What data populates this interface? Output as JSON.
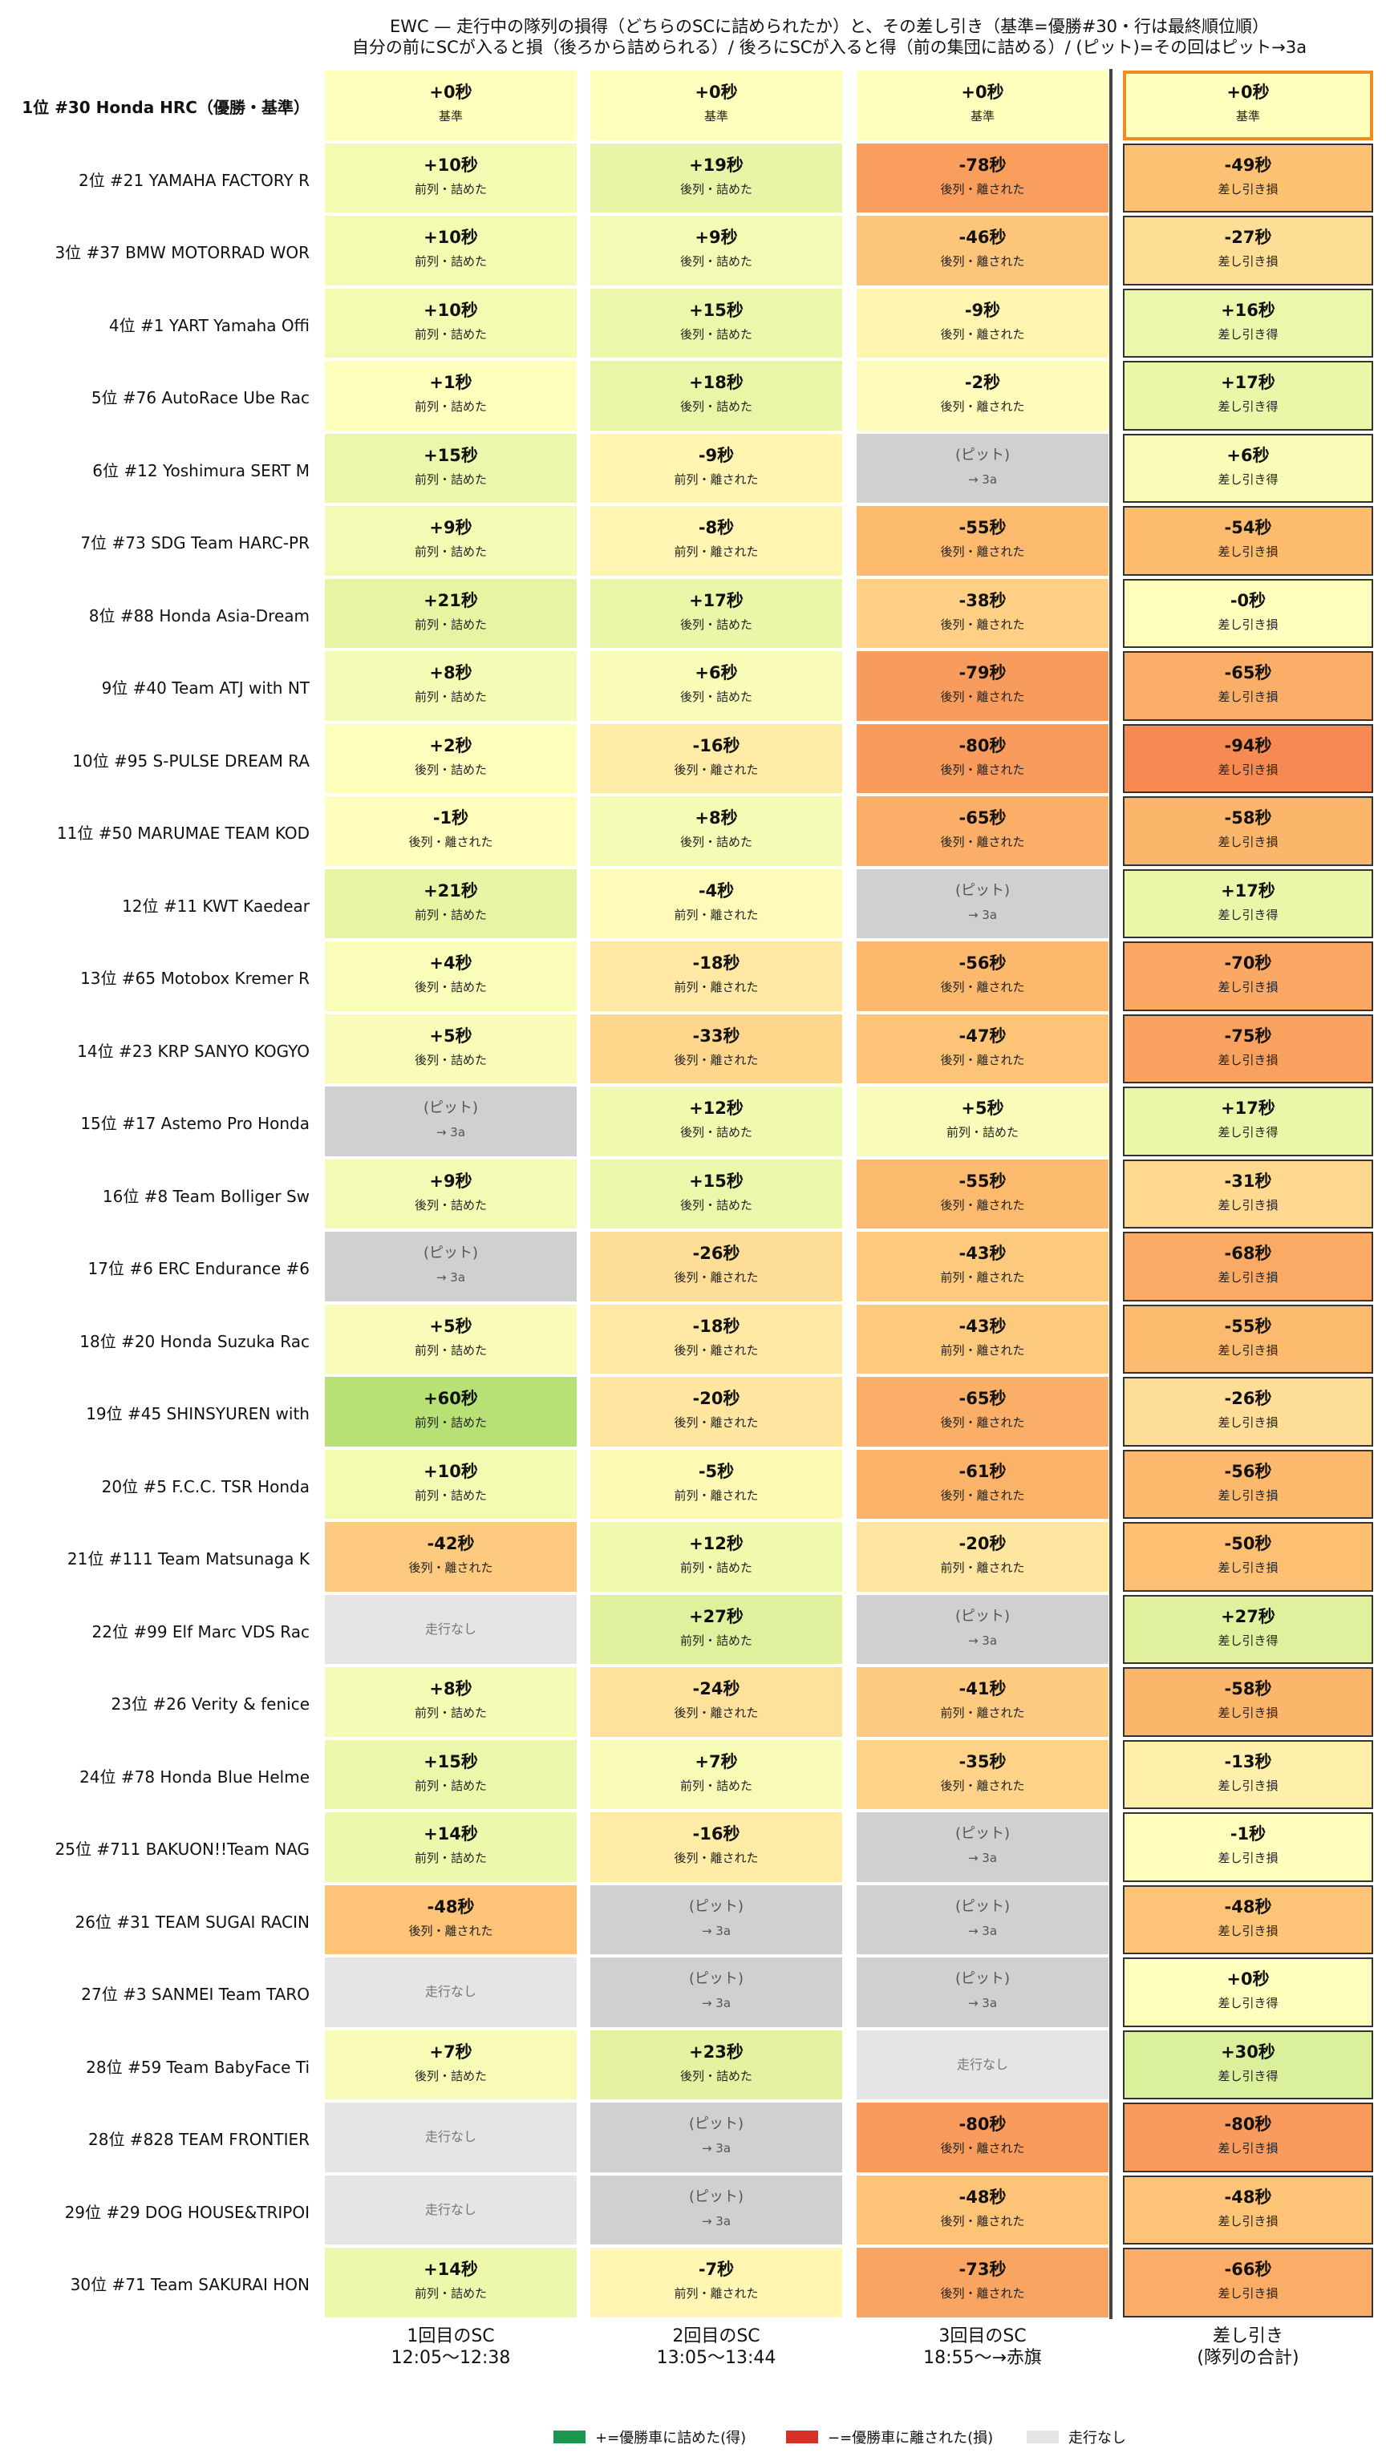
{
  "title": {
    "line1": "EWC — 走行中の隊列の損得（どちらのSCに詰められたか）と、その差し引き（基準=優勝#30・行は最終順位順）",
    "line2": "自分の前にSCが入ると損（後ろから詰められる）/ 後ろにSCが入ると得（前の集団に詰める）/ (ピット)=その回はピット→3a"
  },
  "chart_data": {
    "type": "heatmap",
    "unit": "秒",
    "columns": [
      {
        "label": "1回目のSC",
        "sub": "12:05〜12:38"
      },
      {
        "label": "2回目のSC",
        "sub": "13:05〜13:44"
      },
      {
        "label": "3回目のSC",
        "sub": "18:55〜→赤旗"
      },
      {
        "label": "差し引き",
        "sub": "(隊列の合計)"
      }
    ],
    "status_labels": {
      "base": "基準",
      "ahead_gain": "前列・詰めた",
      "behind_gain": "後列・詰めた",
      "ahead_loss": "前列・離された",
      "behind_loss": "後列・離された",
      "pit": "(ピット)",
      "pit_sub": "→ 3a",
      "none": "走行なし",
      "total_gain": "差し引き得",
      "total_loss": "差し引き損"
    },
    "rows": [
      {
        "label": "1位 #30 Honda HRC（優勝・基準）",
        "cells": [
          [
            0,
            "base"
          ],
          [
            0,
            "base"
          ],
          [
            0,
            "base"
          ]
        ],
        "total": 0,
        "total_sub": "base"
      },
      {
        "label": "2位 #21 YAMAHA FACTORY R",
        "cells": [
          [
            10,
            "ahead_gain"
          ],
          [
            19,
            "behind_gain"
          ],
          [
            -78,
            "behind_loss"
          ]
        ],
        "total": -49,
        "total_sub": "total_loss"
      },
      {
        "label": "3位 #37 BMW MOTORRAD WOR",
        "cells": [
          [
            10,
            "ahead_gain"
          ],
          [
            9,
            "behind_gain"
          ],
          [
            -46,
            "behind_loss"
          ]
        ],
        "total": -27,
        "total_sub": "total_loss"
      },
      {
        "label": "4位 #1 YART Yamaha Offi",
        "cells": [
          [
            10,
            "ahead_gain"
          ],
          [
            15,
            "behind_gain"
          ],
          [
            -9,
            "behind_loss"
          ]
        ],
        "total": 16,
        "total_sub": "total_gain"
      },
      {
        "label": "5位 #76 AutoRace Ube Rac",
        "cells": [
          [
            1,
            "ahead_gain"
          ],
          [
            18,
            "behind_gain"
          ],
          [
            -2,
            "behind_loss"
          ]
        ],
        "total": 17,
        "total_sub": "total_gain"
      },
      {
        "label": "6位 #12 Yoshimura SERT M",
        "cells": [
          [
            15,
            "ahead_gain"
          ],
          [
            -9,
            "ahead_loss"
          ],
          [
            null,
            "pit"
          ]
        ],
        "total": 6,
        "total_sub": "total_gain"
      },
      {
        "label": "7位 #73 SDG Team HARC-PR",
        "cells": [
          [
            9,
            "ahead_gain"
          ],
          [
            -8,
            "ahead_loss"
          ],
          [
            -55,
            "behind_loss"
          ]
        ],
        "total": -54,
        "total_sub": "total_loss"
      },
      {
        "label": "8位 #88 Honda Asia-Dream",
        "cells": [
          [
            21,
            "ahead_gain"
          ],
          [
            17,
            "behind_gain"
          ],
          [
            -38,
            "behind_loss"
          ]
        ],
        "total": 0,
        "total_sub": "total_loss"
      },
      {
        "label": "9位 #40 Team ATJ with NT",
        "cells": [
          [
            8,
            "ahead_gain"
          ],
          [
            6,
            "behind_gain"
          ],
          [
            -79,
            "behind_loss"
          ]
        ],
        "total": -65,
        "total_sub": "total_loss"
      },
      {
        "label": "10位 #95 S-PULSE DREAM RA",
        "cells": [
          [
            2,
            "behind_gain"
          ],
          [
            -16,
            "behind_loss"
          ],
          [
            -80,
            "behind_loss"
          ]
        ],
        "total": -94,
        "total_sub": "total_loss"
      },
      {
        "label": "11位 #50 MARUMAE TEAM KOD",
        "cells": [
          [
            -1,
            "behind_loss"
          ],
          [
            8,
            "behind_gain"
          ],
          [
            -65,
            "behind_loss"
          ]
        ],
        "total": -58,
        "total_sub": "total_loss"
      },
      {
        "label": "12位 #11 KWT Kaedear",
        "cells": [
          [
            21,
            "ahead_gain"
          ],
          [
            -4,
            "ahead_loss"
          ],
          [
            null,
            "pit"
          ]
        ],
        "total": 17,
        "total_sub": "total_gain"
      },
      {
        "label": "13位 #65 Motobox Kremer R",
        "cells": [
          [
            4,
            "behind_gain"
          ],
          [
            -18,
            "ahead_loss"
          ],
          [
            -56,
            "behind_loss"
          ]
        ],
        "total": -70,
        "total_sub": "total_loss"
      },
      {
        "label": "14位 #23 KRP SANYO KOGYO",
        "cells": [
          [
            5,
            "behind_gain"
          ],
          [
            -33,
            "behind_loss"
          ],
          [
            -47,
            "behind_loss"
          ]
        ],
        "total": -75,
        "total_sub": "total_loss"
      },
      {
        "label": "15位 #17 Astemo Pro Honda",
        "cells": [
          [
            null,
            "pit"
          ],
          [
            12,
            "behind_gain"
          ],
          [
            5,
            "ahead_gain"
          ]
        ],
        "total": 17,
        "total_sub": "total_gain"
      },
      {
        "label": "16位 #8 Team Bolliger Sw",
        "cells": [
          [
            9,
            "behind_gain"
          ],
          [
            15,
            "behind_gain"
          ],
          [
            -55,
            "behind_loss"
          ]
        ],
        "total": -31,
        "total_sub": "total_loss"
      },
      {
        "label": "17位 #6 ERC Endurance #6",
        "cells": [
          [
            null,
            "pit"
          ],
          [
            -26,
            "behind_loss"
          ],
          [
            -43,
            "ahead_loss"
          ]
        ],
        "total": -68,
        "total_sub": "total_loss"
      },
      {
        "label": "18位 #20 Honda Suzuka Rac",
        "cells": [
          [
            5,
            "ahead_gain"
          ],
          [
            -18,
            "behind_loss"
          ],
          [
            -43,
            "ahead_loss"
          ]
        ],
        "total": -55,
        "total_sub": "total_loss"
      },
      {
        "label": "19位 #45 SHINSYUREN with",
        "cells": [
          [
            60,
            "ahead_gain"
          ],
          [
            -20,
            "behind_loss"
          ],
          [
            -65,
            "behind_loss"
          ]
        ],
        "total": -26,
        "total_sub": "total_loss"
      },
      {
        "label": "20位 #5 F.C.C. TSR Honda",
        "cells": [
          [
            10,
            "ahead_gain"
          ],
          [
            -5,
            "ahead_loss"
          ],
          [
            -61,
            "behind_loss"
          ]
        ],
        "total": -56,
        "total_sub": "total_loss"
      },
      {
        "label": "21位 #111 Team Matsunaga K",
        "cells": [
          [
            -42,
            "behind_loss"
          ],
          [
            12,
            "ahead_gain"
          ],
          [
            -20,
            "ahead_loss"
          ]
        ],
        "total": -50,
        "total_sub": "total_loss"
      },
      {
        "label": "22位 #99 Elf Marc VDS Rac",
        "cells": [
          [
            null,
            "none"
          ],
          [
            27,
            "ahead_gain"
          ],
          [
            null,
            "pit"
          ]
        ],
        "total": 27,
        "total_sub": "total_gain"
      },
      {
        "label": "23位 #26 Verity & fenice",
        "cells": [
          [
            8,
            "ahead_gain"
          ],
          [
            -24,
            "behind_loss"
          ],
          [
            -41,
            "ahead_loss"
          ]
        ],
        "total": -58,
        "total_sub": "total_loss"
      },
      {
        "label": "24位 #78 Honda Blue Helme",
        "cells": [
          [
            15,
            "ahead_gain"
          ],
          [
            7,
            "ahead_gain"
          ],
          [
            -35,
            "behind_loss"
          ]
        ],
        "total": -13,
        "total_sub": "total_loss"
      },
      {
        "label": "25位 #711 BAKUON!!Team NAG",
        "cells": [
          [
            14,
            "ahead_gain"
          ],
          [
            -16,
            "behind_loss"
          ],
          [
            null,
            "pit"
          ]
        ],
        "total": -1,
        "total_sub": "total_loss"
      },
      {
        "label": "26位 #31 TEAM SUGAI RACIN",
        "cells": [
          [
            -48,
            "behind_loss"
          ],
          [
            null,
            "pit"
          ],
          [
            null,
            "pit"
          ]
        ],
        "total": -48,
        "total_sub": "total_loss"
      },
      {
        "label": "27位 #3 SANMEI Team TARO",
        "cells": [
          [
            null,
            "none"
          ],
          [
            null,
            "pit"
          ],
          [
            null,
            "pit"
          ]
        ],
        "total": 0,
        "total_sub": "total_gain"
      },
      {
        "label": "28位 #59 Team BabyFace Ti",
        "cells": [
          [
            7,
            "behind_gain"
          ],
          [
            23,
            "behind_gain"
          ],
          [
            null,
            "none"
          ]
        ],
        "total": 30,
        "total_sub": "total_gain"
      },
      {
        "label": "28位 #828 TEAM FRONTIER",
        "cells": [
          [
            null,
            "none"
          ],
          [
            null,
            "pit"
          ],
          [
            -80,
            "behind_loss"
          ]
        ],
        "total": -80,
        "total_sub": "total_loss"
      },
      {
        "label": "29位 #29 DOG HOUSE&TRIPOI",
        "cells": [
          [
            null,
            "none"
          ],
          [
            null,
            "pit"
          ],
          [
            -48,
            "behind_loss"
          ]
        ],
        "total": -48,
        "total_sub": "total_loss"
      },
      {
        "label": "30位 #71 Team SAKURAI HON",
        "cells": [
          [
            14,
            "ahead_gain"
          ],
          [
            -7,
            "ahead_loss"
          ],
          [
            -73,
            "behind_loss"
          ]
        ],
        "total": -66,
        "total_sub": "total_loss"
      }
    ],
    "color_scale": {
      "min": -94,
      "max": 60
    }
  },
  "legend": {
    "items": [
      {
        "label": "+=優勝車に詰めた(得)",
        "color": "#1a9850"
      },
      {
        "label": "−=優勝車に離された(損)",
        "color": "#d73027"
      },
      {
        "label": "走行なし",
        "color": "#e5e5e5"
      }
    ]
  }
}
